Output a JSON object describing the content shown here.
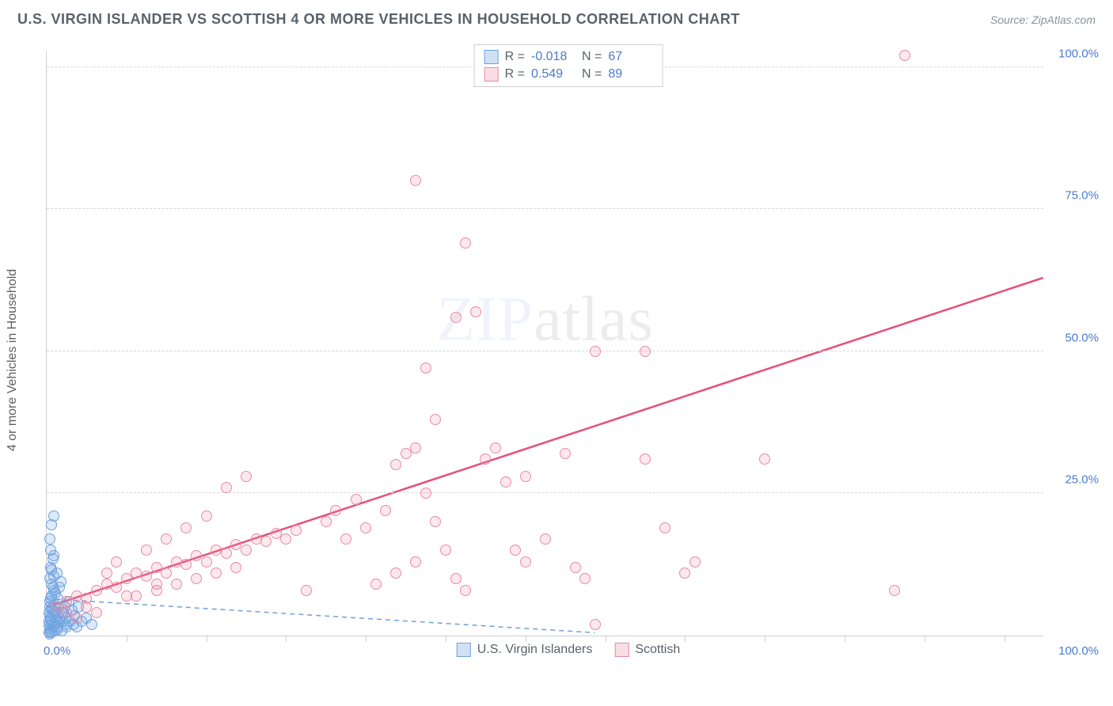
{
  "header": {
    "title": "U.S. VIRGIN ISLANDER VS SCOTTISH 4 OR MORE VEHICLES IN HOUSEHOLD CORRELATION CHART",
    "source": "Source: ZipAtlas.com"
  },
  "axes": {
    "y_label": "4 or more Vehicles in Household",
    "xlim": [
      0,
      100
    ],
    "ylim": [
      0,
      103
    ],
    "y_ticks": [
      25,
      50,
      75,
      100
    ],
    "y_tick_labels": [
      "25.0%",
      "50.0%",
      "75.0%",
      "100.0%"
    ],
    "x_origin_label": "0.0%",
    "x_end_label": "100.0%",
    "x_minor_ticks": [
      8,
      16,
      24,
      32,
      40,
      48,
      56,
      64,
      72,
      80,
      88,
      96
    ],
    "grid_color": "#d8d8d8",
    "axis_color": "#cfcfcf",
    "label_color": "#4a7bd0",
    "label_fontsize": 15
  },
  "watermark": {
    "zip": "ZIP",
    "atlas": "atlas"
  },
  "legend_top": {
    "rows": [
      {
        "color": "blue",
        "r_label": "R =",
        "r_value": "-0.018",
        "n_label": "N =",
        "n_value": "67"
      },
      {
        "color": "pink",
        "r_label": "R =",
        "r_value": "0.549",
        "n_label": "N =",
        "n_value": "89"
      }
    ]
  },
  "legend_bottom": {
    "items": [
      {
        "color": "blue",
        "label": "U.S. Virgin Islanders"
      },
      {
        "color": "pink",
        "label": "Scottish"
      }
    ]
  },
  "series": {
    "blue": {
      "color_fill": "rgba(120,170,230,0.25)",
      "color_stroke": "#6fa0dd",
      "marker_radius": 7,
      "trend": {
        "x1": 0,
        "y1": 6.5,
        "x2": 55,
        "y2": 0.5,
        "stroke": "#6fa0dd",
        "width": 1.5,
        "dash": "6,5"
      },
      "points": [
        [
          0.2,
          0.5
        ],
        [
          0.3,
          1.2
        ],
        [
          0.5,
          2.0
        ],
        [
          0.4,
          3.0
        ],
        [
          0.6,
          4.5
        ],
        [
          0.8,
          5.5
        ],
        [
          1.0,
          3.5
        ],
        [
          1.2,
          2.2
        ],
        [
          0.3,
          6.0
        ],
        [
          0.5,
          7.0
        ],
        [
          0.7,
          8.0
        ],
        [
          1.5,
          4.0
        ],
        [
          1.8,
          5.0
        ],
        [
          2.0,
          3.0
        ],
        [
          0.4,
          0.8
        ],
        [
          0.6,
          1.5
        ],
        [
          0.9,
          2.8
        ],
        [
          1.1,
          6.5
        ],
        [
          1.3,
          8.5
        ],
        [
          0.2,
          4.0
        ],
        [
          0.3,
          5.0
        ],
        [
          0.5,
          9.0
        ],
        [
          0.7,
          10.5
        ],
        [
          0.4,
          12.0
        ],
        [
          0.6,
          13.5
        ],
        [
          1.0,
          11.0
        ],
        [
          1.4,
          9.5
        ],
        [
          2.2,
          6.0
        ],
        [
          2.5,
          4.5
        ],
        [
          2.8,
          3.5
        ],
        [
          3.2,
          5.0
        ],
        [
          0.2,
          2.5
        ],
        [
          0.3,
          3.5
        ],
        [
          0.5,
          4.8
        ],
        [
          0.8,
          2.0
        ],
        [
          1.0,
          1.0
        ],
        [
          1.6,
          2.5
        ],
        [
          2.0,
          1.5
        ],
        [
          0.4,
          6.5
        ],
        [
          0.6,
          8.5
        ],
        [
          0.9,
          7.5
        ],
        [
          1.2,
          5.0
        ],
        [
          0.3,
          10.0
        ],
        [
          0.5,
          11.5
        ],
        [
          0.7,
          14.0
        ],
        [
          0.4,
          15.0
        ],
        [
          0.3,
          17.0
        ],
        [
          0.5,
          19.5
        ],
        [
          0.7,
          21.0
        ],
        [
          0.2,
          1.8
        ],
        [
          0.4,
          2.8
        ],
        [
          0.6,
          3.8
        ],
        [
          0.9,
          4.2
        ],
        [
          1.3,
          3.0
        ],
        [
          1.7,
          4.0
        ],
        [
          0.3,
          0.3
        ],
        [
          0.5,
          0.6
        ],
        [
          0.8,
          0.9
        ],
        [
          1.1,
          1.5
        ],
        [
          1.5,
          0.8
        ],
        [
          1.9,
          2.0
        ],
        [
          2.3,
          2.5
        ],
        [
          2.7,
          2.0
        ],
        [
          3.0,
          1.5
        ],
        [
          3.5,
          2.5
        ],
        [
          4.0,
          3.0
        ],
        [
          4.5,
          2.0
        ]
      ]
    },
    "pink": {
      "color_fill": "rgba(240,140,165,0.20)",
      "color_stroke": "#e88aa5",
      "marker_radius": 7,
      "trend": {
        "x1": 0,
        "y1": 5,
        "x2": 100,
        "y2": 63,
        "stroke": "#e6517a",
        "width": 2.5,
        "dash": ""
      },
      "points": [
        [
          1,
          5
        ],
        [
          2,
          6
        ],
        [
          3,
          7
        ],
        [
          4,
          6.5
        ],
        [
          5,
          8
        ],
        [
          6,
          9
        ],
        [
          7,
          8.5
        ],
        [
          8,
          10
        ],
        [
          9,
          11
        ],
        [
          10,
          10.5
        ],
        [
          11,
          12
        ],
        [
          12,
          11
        ],
        [
          13,
          13
        ],
        [
          14,
          12.5
        ],
        [
          15,
          14
        ],
        [
          16,
          13
        ],
        [
          17,
          15
        ],
        [
          18,
          14.5
        ],
        [
          19,
          16
        ],
        [
          20,
          15
        ],
        [
          21,
          17
        ],
        [
          22,
          16.5
        ],
        [
          23,
          18
        ],
        [
          24,
          17
        ],
        [
          25,
          18.5
        ],
        [
          9,
          7
        ],
        [
          11,
          8
        ],
        [
          13,
          9
        ],
        [
          15,
          10
        ],
        [
          17,
          11
        ],
        [
          19,
          12
        ],
        [
          10,
          15
        ],
        [
          12,
          17
        ],
        [
          14,
          19
        ],
        [
          16,
          21
        ],
        [
          18,
          26
        ],
        [
          20,
          28
        ],
        [
          35,
          30
        ],
        [
          36,
          32
        ],
        [
          37,
          33
        ],
        [
          38,
          25
        ],
        [
          39,
          20
        ],
        [
          40,
          15
        ],
        [
          41,
          10
        ],
        [
          42,
          8
        ],
        [
          30,
          17
        ],
        [
          32,
          19
        ],
        [
          34,
          22
        ],
        [
          44,
          31
        ],
        [
          45,
          33
        ],
        [
          47,
          15
        ],
        [
          48,
          13
        ],
        [
          52,
          32
        ],
        [
          53,
          12
        ],
        [
          54,
          10
        ],
        [
          55,
          2
        ],
        [
          60,
          31
        ],
        [
          62,
          19
        ],
        [
          72,
          31
        ],
        [
          64,
          11
        ],
        [
          65,
          13
        ],
        [
          85,
          8
        ],
        [
          86,
          102
        ],
        [
          38,
          47
        ],
        [
          39,
          38
        ],
        [
          41,
          56
        ],
        [
          43,
          57
        ],
        [
          37,
          80
        ],
        [
          42,
          69
        ],
        [
          55,
          50
        ],
        [
          60,
          50
        ],
        [
          46,
          27
        ],
        [
          48,
          28
        ],
        [
          50,
          17
        ],
        [
          28,
          20
        ],
        [
          29,
          22
        ],
        [
          31,
          24
        ],
        [
          33,
          9
        ],
        [
          35,
          11
        ],
        [
          37,
          13
        ],
        [
          6,
          11
        ],
        [
          7,
          13
        ],
        [
          8,
          7
        ],
        [
          11,
          9
        ],
        [
          4,
          5
        ],
        [
          5,
          4
        ],
        [
          3,
          3
        ],
        [
          2,
          4
        ],
        [
          26,
          8
        ]
      ]
    }
  }
}
